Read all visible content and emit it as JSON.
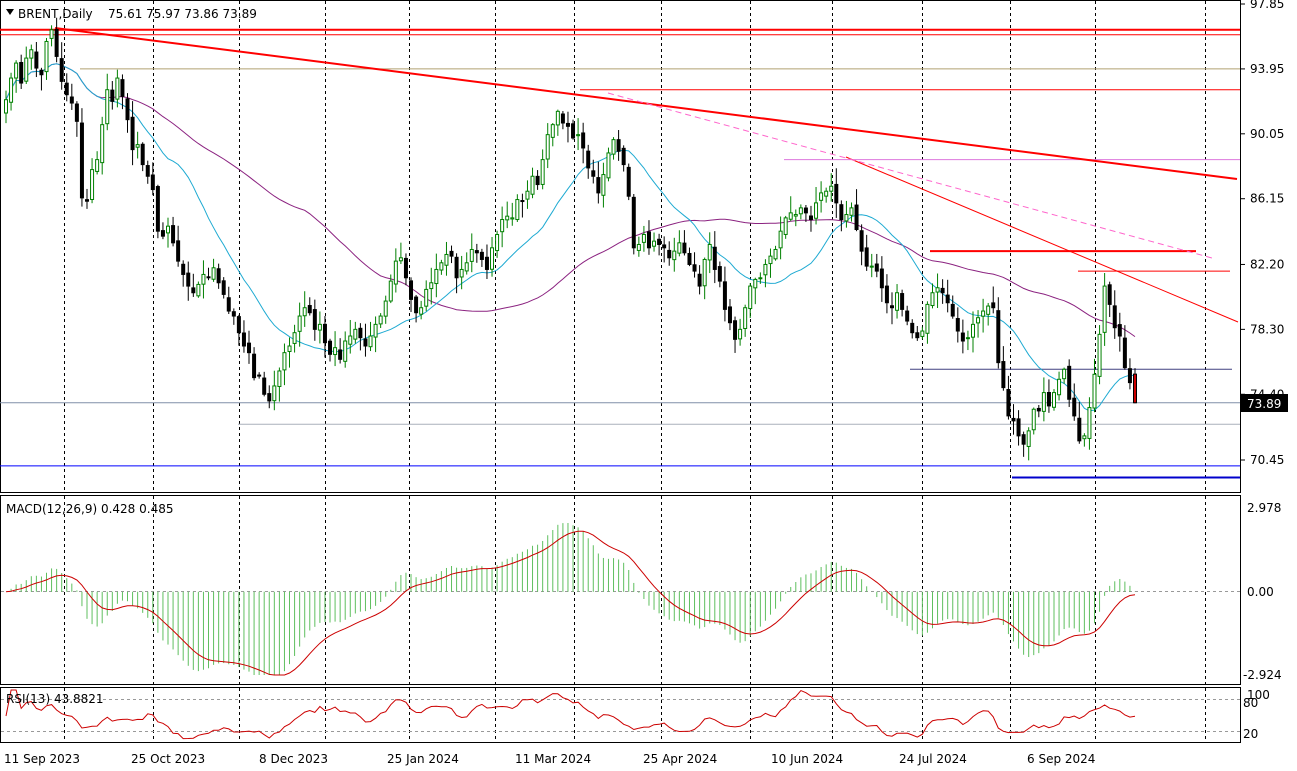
{
  "title": {
    "symbol": "BRENT,Daily",
    "ohlc": "75.61 75.97 73.86 73.89"
  },
  "price_labels": [
    "97.85",
    "93.95",
    "90.05",
    "86.15",
    "82.20",
    "78.30",
    "74.40",
    "70.45"
  ],
  "last_price": "73.89",
  "macd": {
    "title": "MACD(12,26,9) 0.428 0.485",
    "labels": [
      "2.978",
      "0.00",
      "-2.924"
    ]
  },
  "rsi": {
    "title": "RSI(13) 43.8821",
    "labels": [
      "100",
      "80",
      "20"
    ]
  },
  "x_labels": [
    "11 Sep 2023",
    "25 Oct 2023",
    "8 Dec 2023",
    "25 Jan 2024",
    "11 Mar 2024",
    "25 Apr 2024",
    "10 Jun 2024",
    "24 Jul 2024",
    "6 Sep 2024"
  ],
  "colors": {
    "bull": "#008000",
    "bear": "#000000",
    "ma_fast": "#1eaad2",
    "ma_slow": "#8b2280",
    "trend": "#ff0000",
    "support": "#0000ff",
    "macd_hist": "#5fbf5f",
    "macd_signal": "#cc0000",
    "rsi": "#cc0000"
  },
  "chart_data": {
    "type": "candlestick",
    "instrument": "BRENT",
    "timeframe": "Daily",
    "last": {
      "open": 75.61,
      "high": 75.97,
      "low": 73.86,
      "close": 73.89
    },
    "price_range": [
      68.5,
      97.85
    ],
    "closes": [
      92.1,
      93.4,
      94.3,
      93.1,
      94.6,
      95.1,
      94.0,
      93.6,
      95.6,
      96.3,
      94.7,
      93.2,
      92.4,
      91.9,
      90.8,
      86.2,
      86.0,
      87.9,
      88.5,
      90.6,
      92.7,
      92.0,
      93.4,
      92.3,
      90.9,
      89.1,
      89.4,
      88.2,
      87.5,
      86.7,
      84.2,
      83.9,
      84.5,
      83.5,
      82.4,
      81.6,
      80.9,
      80.5,
      81.0,
      81.6,
      81.4,
      82.0,
      81.1,
      80.4,
      79.4,
      79.1,
      78.1,
      77.3,
      76.9,
      75.4,
      75.5,
      74.4,
      74.0,
      74.9,
      75.8,
      76.9,
      77.3,
      78.1,
      79.1,
      79.6,
      79.3,
      78.3,
      78.6,
      77.5,
      76.8,
      77.2,
      76.5,
      77.6,
      77.9,
      78.3,
      77.8,
      77.3,
      77.9,
      78.6,
      79.1,
      80.0,
      81.2,
      82.4,
      82.6,
      81.4,
      80.1,
      79.3,
      79.6,
      80.7,
      81.1,
      81.9,
      82.3,
      82.8,
      82.7,
      81.4,
      81.9,
      82.3,
      83.1,
      82.9,
      82.5,
      81.9,
      83.2,
      84.0,
      84.9,
      85.1,
      85.0,
      86.1,
      86.0,
      86.6,
      87.5,
      87.0,
      88.5,
      90.0,
      90.6,
      91.4,
      90.7,
      90.5,
      89.8,
      90.0,
      89.2,
      88.0,
      87.5,
      86.5,
      87.6,
      88.9,
      89.7,
      89.0,
      88.2,
      86.3,
      83.2,
      83.4,
      84.0,
      83.2,
      83.6,
      83.4,
      83.2,
      82.6,
      83.0,
      83.5,
      82.9,
      82.2,
      81.8,
      80.9,
      82.5,
      83.4,
      81.9,
      81.2,
      79.5,
      78.7,
      77.7,
      78.3,
      79.6,
      80.9,
      81.3,
      81.4,
      82.2,
      82.7,
      83.1,
      84.2,
      85.0,
      85.3,
      85.2,
      85.6,
      85.3,
      84.9,
      85.9,
      86.5,
      86.6,
      86.9,
      85.9,
      84.9,
      85.2,
      85.6,
      84.3,
      83.0,
      82.1,
      82.1,
      81.8,
      80.8,
      79.9,
      79.6,
      80.5,
      79.5,
      78.8,
      78.1,
      77.8,
      78.2,
      79.8,
      80.5,
      80.8,
      80.5,
      79.9,
      79.1,
      78.2,
      77.6,
      77.8,
      78.6,
      79.0,
      79.4,
      79.7,
      79.6,
      76.3,
      74.8,
      73.1,
      72.8,
      71.9,
      71.4,
      72.2,
      73.5,
      73.4,
      74.5,
      73.7,
      74.5,
      75.3,
      75.9,
      74.1,
      73.1,
      71.6,
      71.9,
      73.6,
      75.6,
      78.0,
      80.9,
      79.8,
      78.4,
      77.9,
      76.0,
      75.1,
      73.89
    ],
    "overlays": {
      "ma_fast_color": "#1eaad2",
      "ma_slow_color": "#8b2280",
      "horizontal_levels": [
        96.3,
        93.95,
        92.7,
        88.5,
        83.0,
        81.8,
        75.9,
        73.89,
        72.6,
        70.45,
        69.6
      ]
    },
    "macd": {
      "params": "12,26,9",
      "value": 0.428,
      "signal": 0.485,
      "range": [
        -2.924,
        2.978
      ]
    },
    "rsi": {
      "period": 13,
      "value": 43.8821,
      "levels": [
        20,
        80
      ],
      "range": [
        0,
        100
      ]
    },
    "x_tick_labels": [
      "11 Sep 2023",
      "25 Oct 2023",
      "8 Dec 2023",
      "25 Jan 2024",
      "11 Mar 2024",
      "25 Apr 2024",
      "10 Jun 2024",
      "24 Jul 2024",
      "6 Sep 2024"
    ]
  }
}
